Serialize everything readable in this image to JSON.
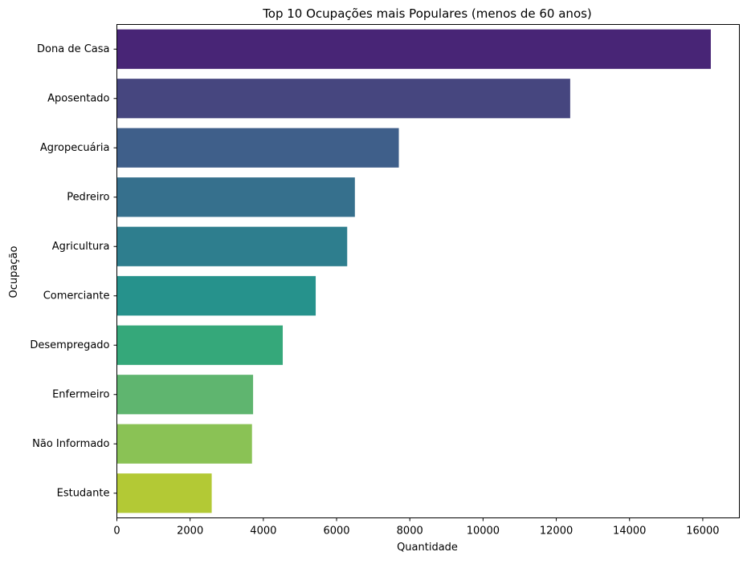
{
  "chart_data": {
    "type": "bar",
    "orientation": "horizontal",
    "title": "Top 10 Ocupações mais Populares (menos de 60 anos)",
    "xlabel": "Quantidade",
    "ylabel": "Ocupação",
    "categories": [
      "Dona de Casa",
      "Aposentado",
      "Agropecuária",
      "Pedreiro",
      "Agricultura",
      "Comerciante",
      "Desempregado",
      "Enfermeiro",
      "Não Informado",
      "Estudante"
    ],
    "values": [
      16220,
      12380,
      7700,
      6500,
      6290,
      5430,
      4530,
      3720,
      3690,
      2590
    ],
    "colors": [
      "#482576",
      "#46467f",
      "#3f5f8a",
      "#36708d",
      "#2e7e8e",
      "#26928c",
      "#35a87a",
      "#5fb56f",
      "#8ac255",
      "#b3c935"
    ],
    "xlim": [
      0,
      17000
    ],
    "xticks": [
      0,
      2000,
      4000,
      6000,
      8000,
      10000,
      12000,
      14000,
      16000
    ],
    "grid": false,
    "legend": "none"
  }
}
